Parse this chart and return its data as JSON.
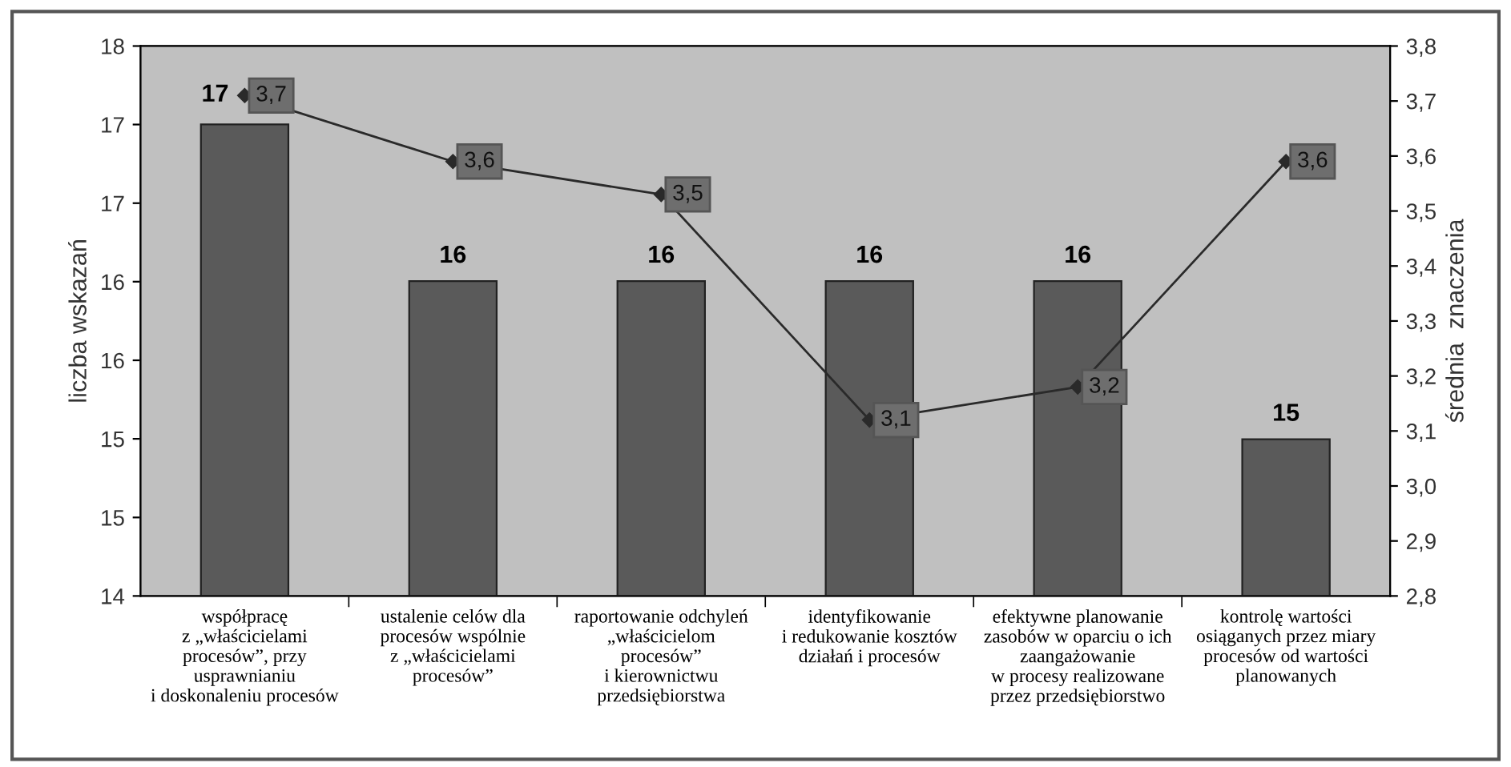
{
  "chart_data": {
    "type": "bar",
    "categories": [
      "współpracę\nz „właścicielami\nprocesów”, przy\nusprawnianiu\ni doskonaleniu procesów",
      "ustalenie celów dla\nprocesów wspólnie\nz „właścicielami\nprocesów”",
      "raportowanie odchyleń\n„właścicielom\nprocesów”\ni kierownictwu\nprzedsiębiorstwa",
      "identyfikowanie\ni redukowanie kosztów\ndziałań i procesów",
      "efektywne planowanie\nzasobów w oparciu o ich\nzaangażowanie\nw procesy realizowane\nprzez przedsiębiorstwo",
      "kontrolę wartości\nosiąganych przez miary\nprocesów od wartości\nplanowanych"
    ],
    "ylabel": "liczba wskazań",
    "y2label": "średnia  znaczenia",
    "series": [
      {
        "color": "#5a5a5a",
        "values": [
          17.43,
          16.29,
          16.29,
          16.29,
          16.29,
          15.14
        ],
        "value_labels": [
          "17",
          "16",
          "16",
          "16",
          "16",
          "15"
        ]
      },
      {
        "type": "line",
        "axis": "y2",
        "color": "#2a2a2a",
        "marker": "diamond",
        "values": [
          3.71,
          3.59,
          3.53,
          3.12,
          3.18,
          3.59
        ],
        "value_labels": [
          "3,7",
          "3,6",
          "3,5",
          "3,1",
          "3,2",
          "3,6"
        ]
      }
    ],
    "ylim": [
      14,
      18
    ],
    "yticks": [
      14,
      {
        "value": 14.571,
        "label": "15"
      },
      {
        "value": 15.143,
        "label": "15"
      },
      {
        "value": 15.714,
        "label": "16"
      },
      {
        "value": 16.286,
        "label": "16"
      },
      {
        "value": 16.857,
        "label": "17"
      },
      {
        "value": 17.429,
        "label": "17"
      },
      18
    ],
    "y2lim": [
      2.8,
      3.8
    ],
    "y2ticks": [
      {
        "value": 2.8,
        "label": "2,8"
      },
      {
        "value": 2.9,
        "label": "2,9"
      },
      {
        "value": 3.0,
        "label": "3,0"
      },
      {
        "value": 3.1,
        "label": "3,1"
      },
      {
        "value": 3.2,
        "label": "3,2"
      },
      {
        "value": 3.3,
        "label": "3,3"
      },
      {
        "value": 3.4,
        "label": "3,4"
      },
      {
        "value": 3.5,
        "label": "3,5"
      },
      {
        "value": 3.6,
        "label": "3,6"
      },
      {
        "value": 3.7,
        "label": "3,7"
      },
      {
        "value": 3.8,
        "label": "3,8"
      }
    ],
    "grid": false,
    "legend": false
  }
}
